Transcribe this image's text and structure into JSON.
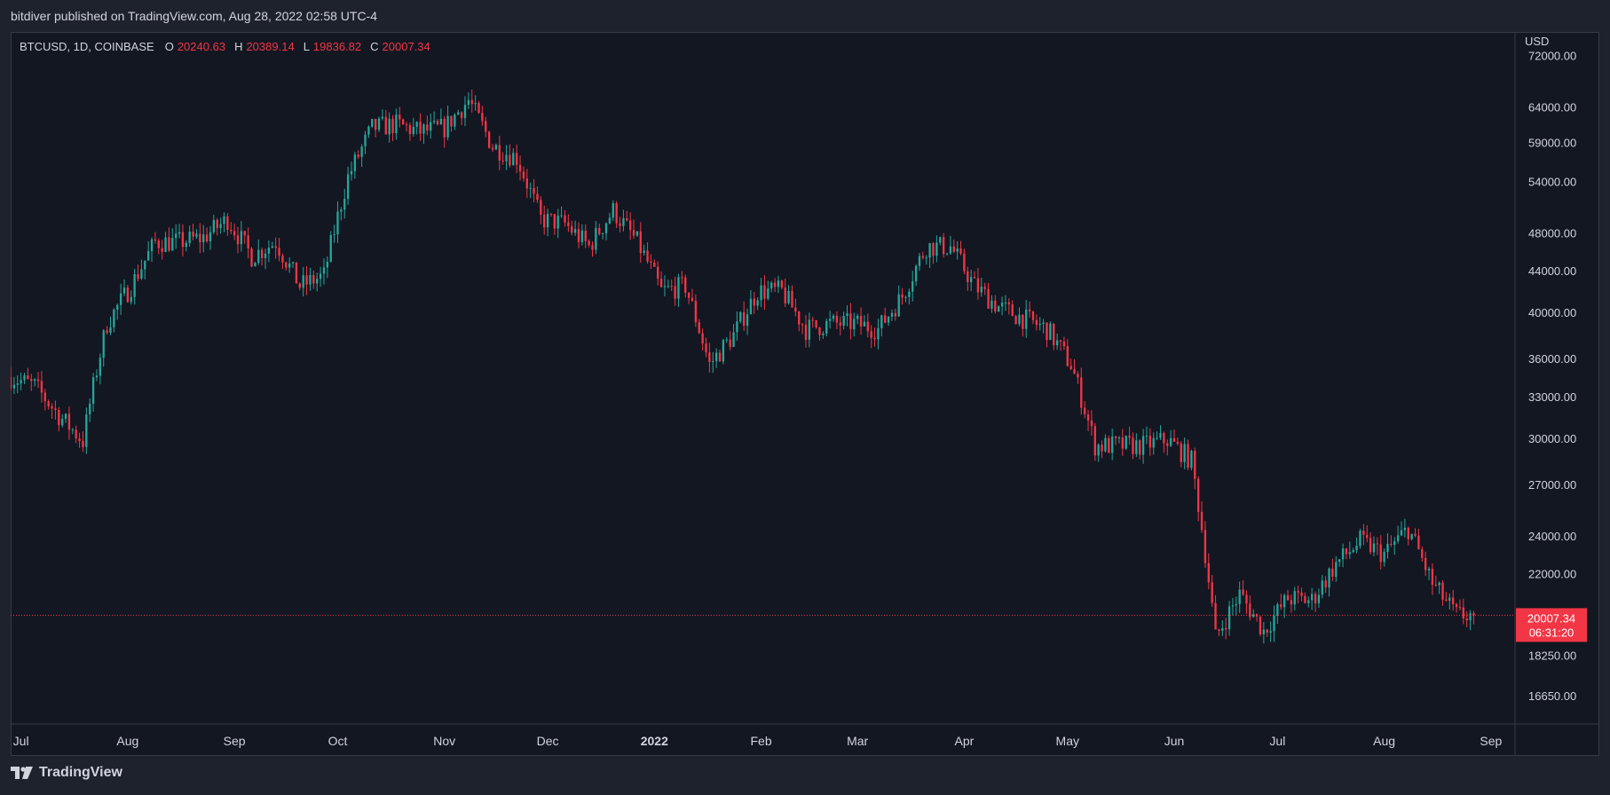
{
  "header": {
    "publisher_line": "bitdiver published on TradingView.com, Aug 28, 2022 02:58 UTC-4"
  },
  "legend": {
    "symbol_line": "BTCUSD, 1D, COINBASE",
    "o_key": "O",
    "o_val": "20240.63",
    "h_key": "H",
    "h_val": "20389.14",
    "l_key": "L",
    "l_val": "19836.82",
    "c_key": "C",
    "c_val": "20007.34"
  },
  "price_badge": {
    "price": "20007.34",
    "countdown": "06:31:20"
  },
  "footer": {
    "brand": "TradingView"
  },
  "colors": {
    "up": "#26a69a",
    "down": "#f23645",
    "background": "#131722",
    "text": "#d1d4dc"
  },
  "chart_data": {
    "type": "candlestick",
    "symbol": "BTCUSD",
    "interval": "1D",
    "exchange": "COINBASE",
    "currency_label": "USD",
    "y_scale": "log",
    "ylim": [
      15600,
      76000
    ],
    "y_ticks": [
      "72000.00",
      "64000.00",
      "59000.00",
      "54000.00",
      "48000.00",
      "44000.00",
      "40000.00",
      "36000.00",
      "33000.00",
      "30000.00",
      "27000.00",
      "24000.00",
      "22000.00",
      "18250.00",
      "16650.00"
    ],
    "x_range": [
      "2021-06-28",
      "2022-09-08"
    ],
    "x_ticks": [
      {
        "label": "Jul",
        "date": "2021-07-01",
        "bold": false
      },
      {
        "label": "Aug",
        "date": "2021-08-01",
        "bold": false
      },
      {
        "label": "Sep",
        "date": "2021-09-01",
        "bold": false
      },
      {
        "label": "Oct",
        "date": "2021-10-01",
        "bold": false
      },
      {
        "label": "Nov",
        "date": "2021-11-01",
        "bold": false
      },
      {
        "label": "Dec",
        "date": "2021-12-01",
        "bold": false
      },
      {
        "label": "2022",
        "date": "2022-01-01",
        "bold": true
      },
      {
        "label": "Feb",
        "date": "2022-02-01",
        "bold": false
      },
      {
        "label": "Mar",
        "date": "2022-03-01",
        "bold": false
      },
      {
        "label": "Apr",
        "date": "2022-04-01",
        "bold": false
      },
      {
        "label": "May",
        "date": "2022-05-01",
        "bold": false
      },
      {
        "label": "Jun",
        "date": "2022-06-01",
        "bold": false
      },
      {
        "label": "Jul",
        "date": "2022-07-01",
        "bold": false
      },
      {
        "label": "Aug",
        "date": "2022-08-01",
        "bold": false
      },
      {
        "label": "Sep",
        "date": "2022-09-01",
        "bold": false
      }
    ],
    "last_price": 20007.34,
    "closes": [
      {
        "date": "2021-06-28",
        "close": 34500
      },
      {
        "date": "2021-07-05",
        "close": 33800
      },
      {
        "date": "2021-07-12",
        "close": 31600
      },
      {
        "date": "2021-07-19",
        "close": 29800
      },
      {
        "date": "2021-07-26",
        "close": 39000
      },
      {
        "date": "2021-08-02",
        "close": 42500
      },
      {
        "date": "2021-08-09",
        "close": 47000
      },
      {
        "date": "2021-08-16",
        "close": 47000
      },
      {
        "date": "2021-08-23",
        "close": 47500
      },
      {
        "date": "2021-08-30",
        "close": 49500
      },
      {
        "date": "2021-09-06",
        "close": 45500
      },
      {
        "date": "2021-09-13",
        "close": 47000
      },
      {
        "date": "2021-09-20",
        "close": 42500
      },
      {
        "date": "2021-09-27",
        "close": 43500
      },
      {
        "date": "2021-10-04",
        "close": 54500
      },
      {
        "date": "2021-10-11",
        "close": 61000
      },
      {
        "date": "2021-10-18",
        "close": 61500
      },
      {
        "date": "2021-10-25",
        "close": 60500
      },
      {
        "date": "2021-11-01",
        "close": 61000
      },
      {
        "date": "2021-11-08",
        "close": 65000
      },
      {
        "date": "2021-11-15",
        "close": 58500
      },
      {
        "date": "2021-11-22",
        "close": 57000
      },
      {
        "date": "2021-11-29",
        "close": 49500
      },
      {
        "date": "2021-12-06",
        "close": 49000
      },
      {
        "date": "2021-12-13",
        "close": 46500
      },
      {
        "date": "2021-12-20",
        "close": 50500
      },
      {
        "date": "2021-12-27",
        "close": 47000
      },
      {
        "date": "2022-01-03",
        "close": 42000
      },
      {
        "date": "2022-01-10",
        "close": 42500
      },
      {
        "date": "2022-01-17",
        "close": 35500
      },
      {
        "date": "2022-01-24",
        "close": 38000
      },
      {
        "date": "2022-01-31",
        "close": 42000
      },
      {
        "date": "2022-02-07",
        "close": 42000
      },
      {
        "date": "2022-02-14",
        "close": 38500
      },
      {
        "date": "2022-02-21",
        "close": 39000
      },
      {
        "date": "2022-02-28",
        "close": 39000
      },
      {
        "date": "2022-03-07",
        "close": 38500
      },
      {
        "date": "2022-03-14",
        "close": 41500
      },
      {
        "date": "2022-03-21",
        "close": 46500
      },
      {
        "date": "2022-03-28",
        "close": 46500
      },
      {
        "date": "2022-04-04",
        "close": 42500
      },
      {
        "date": "2022-04-11",
        "close": 40500
      },
      {
        "date": "2022-04-18",
        "close": 39500
      },
      {
        "date": "2022-04-25",
        "close": 38500
      },
      {
        "date": "2022-05-02",
        "close": 35500
      },
      {
        "date": "2022-05-09",
        "close": 29500
      },
      {
        "date": "2022-05-16",
        "close": 29500
      },
      {
        "date": "2022-05-23",
        "close": 29500
      },
      {
        "date": "2022-05-30",
        "close": 29900
      },
      {
        "date": "2022-06-06",
        "close": 28500
      },
      {
        "date": "2022-06-13",
        "close": 19000
      },
      {
        "date": "2022-06-20",
        "close": 21000
      },
      {
        "date": "2022-06-27",
        "close": 19300
      },
      {
        "date": "2022-07-04",
        "close": 20800
      },
      {
        "date": "2022-07-11",
        "close": 20700
      },
      {
        "date": "2022-07-18",
        "close": 22500
      },
      {
        "date": "2022-07-25",
        "close": 23700
      },
      {
        "date": "2022-08-01",
        "close": 23000
      },
      {
        "date": "2022-08-08",
        "close": 24400
      },
      {
        "date": "2022-08-15",
        "close": 21500
      },
      {
        "date": "2022-08-22",
        "close": 20007
      }
    ]
  }
}
